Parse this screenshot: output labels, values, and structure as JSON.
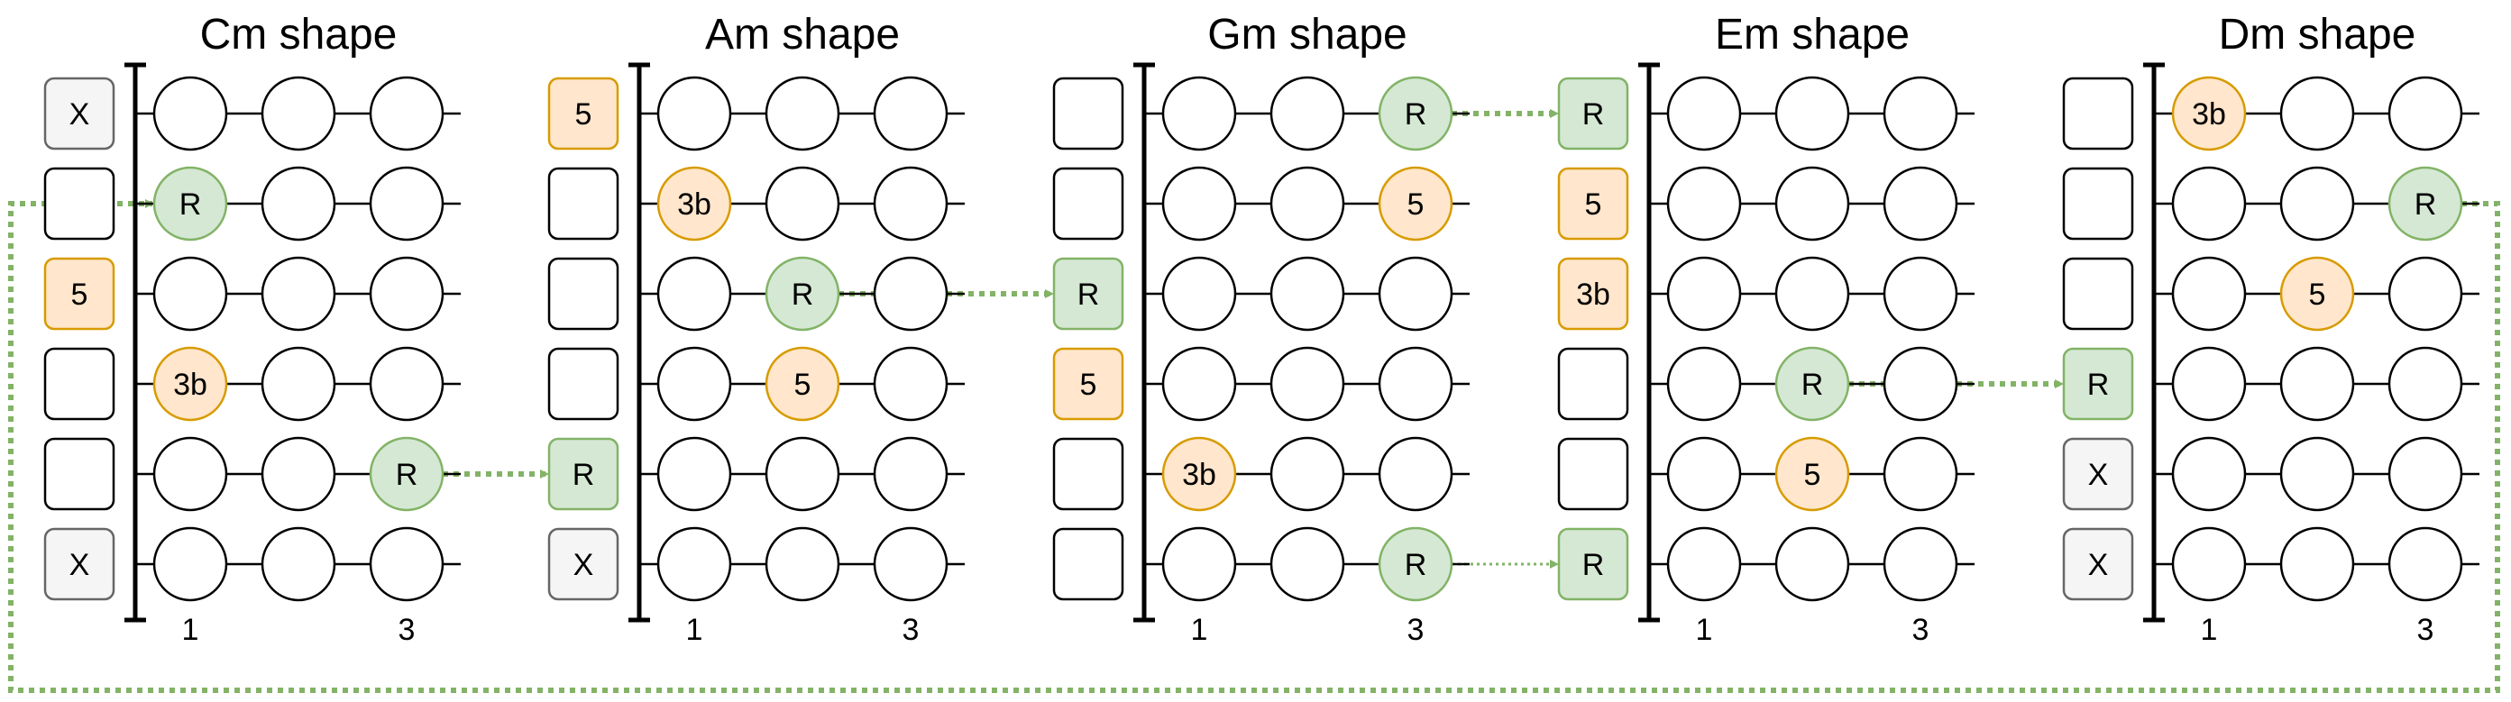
{
  "diagrams": [
    {
      "title": "Cm shape",
      "open": [
        "X",
        "",
        "5",
        "",
        "",
        "X"
      ],
      "notes": [
        {
          "string": 2,
          "fret": 1,
          "label": "R"
        },
        {
          "string": 4,
          "fret": 1,
          "label": "3b"
        },
        {
          "string": 5,
          "fret": 3,
          "label": "R"
        }
      ],
      "fret_labels": [
        "1",
        "3"
      ]
    },
    {
      "title": "Am shape",
      "open": [
        "5",
        "",
        "",
        "",
        "R",
        "X"
      ],
      "notes": [
        {
          "string": 2,
          "fret": 1,
          "label": "3b"
        },
        {
          "string": 3,
          "fret": 2,
          "label": "R"
        },
        {
          "string": 4,
          "fret": 2,
          "label": "5"
        }
      ],
      "fret_labels": [
        "1",
        "3"
      ]
    },
    {
      "title": "Gm shape",
      "open": [
        "",
        "",
        "R",
        "5",
        "",
        ""
      ],
      "notes": [
        {
          "string": 1,
          "fret": 3,
          "label": "R"
        },
        {
          "string": 2,
          "fret": 3,
          "label": "5"
        },
        {
          "string": 5,
          "fret": 1,
          "label": "3b"
        },
        {
          "string": 6,
          "fret": 3,
          "label": "R"
        }
      ],
      "fret_labels": [
        "1",
        "3"
      ]
    },
    {
      "title": "Em shape",
      "open": [
        "R",
        "5",
        "3b",
        "",
        "",
        "R"
      ],
      "notes": [
        {
          "string": 4,
          "fret": 2,
          "label": "R"
        },
        {
          "string": 5,
          "fret": 2,
          "label": "5"
        }
      ],
      "fret_labels": [
        "1",
        "3"
      ]
    },
    {
      "title": "Dm shape",
      "open": [
        "",
        "",
        "",
        "R",
        "X",
        "X"
      ],
      "notes": [
        {
          "string": 1,
          "fret": 1,
          "label": "3b"
        },
        {
          "string": 2,
          "fret": 3,
          "label": "R"
        },
        {
          "string": 3,
          "fret": 2,
          "label": "5"
        }
      ],
      "fret_labels": [
        "1",
        "3"
      ]
    }
  ],
  "colors": {
    "root_fill": "#d5e8d4",
    "root_stroke": "#82b366",
    "fifth_fill": "#ffe6cc",
    "fifth_stroke": "#d79b00",
    "muted_fill": "#f5f5f5",
    "muted_stroke": "#666666",
    "arrow": "#82b366"
  },
  "connections": [
    {
      "from": {
        "diagram": 0,
        "fret": 3,
        "string": 5
      },
      "to": {
        "diagram": 1,
        "open": true,
        "string": 5
      },
      "style": "thick"
    },
    {
      "from": {
        "diagram": 1,
        "fret": 2,
        "string": 3
      },
      "to": {
        "diagram": 2,
        "open": true,
        "string": 3
      },
      "style": "thick"
    },
    {
      "from": {
        "diagram": 2,
        "fret": 3,
        "string": 1
      },
      "to": {
        "diagram": 3,
        "open": true,
        "string": 1
      },
      "style": "thick"
    },
    {
      "from": {
        "diagram": 2,
        "fret": 3,
        "string": 6
      },
      "to": {
        "diagram": 3,
        "open": true,
        "string": 6
      },
      "style": "thin"
    },
    {
      "from": {
        "diagram": 3,
        "fret": 2,
        "string": 4
      },
      "to": {
        "diagram": 4,
        "open": true,
        "string": 4
      },
      "style": "thick"
    },
    {
      "from": {
        "diagram": 4,
        "fret": 3,
        "string": 2
      },
      "to": {
        "diagram": 0,
        "fret": 1,
        "string": 2
      },
      "style": "wrap"
    }
  ]
}
